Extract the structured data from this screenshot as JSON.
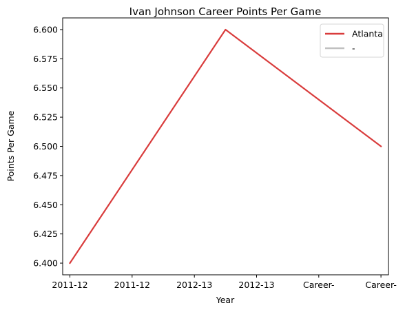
{
  "chart_data": {
    "type": "line",
    "title": "Ivan Johnson  Career Points Per Game",
    "xlabel": "Year",
    "ylabel": "Points Per Game",
    "categories": [
      "2011-12",
      "2011-12",
      "2012-13",
      "2012-13",
      "Career-",
      "Career-"
    ],
    "ylim": [
      6.39,
      6.61
    ],
    "y_ticks": [
      "6.400",
      "6.425",
      "6.450",
      "6.475",
      "6.500",
      "6.525",
      "6.550",
      "6.575",
      "6.600"
    ],
    "grid": false,
    "legend_position": "top-right",
    "series": [
      {
        "name": "Atlanta",
        "color": "#d93c3c",
        "x": [
          0,
          2.5,
          5
        ],
        "values": [
          6.4,
          6.6,
          6.5
        ]
      },
      {
        "name": "-",
        "color": "#c0c0c0",
        "x": [],
        "values": []
      }
    ]
  }
}
